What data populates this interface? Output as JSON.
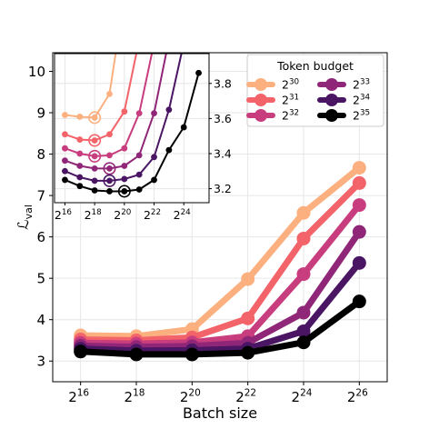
{
  "chart_data": [
    {
      "type": "line",
      "role": "main",
      "xlabel": "Batch size",
      "ylabel_base": "ℒ",
      "ylabel_sub": "val",
      "x": [
        16,
        18,
        20,
        22,
        24,
        26
      ],
      "x_ticks": [
        16,
        18,
        20,
        22,
        24,
        26
      ],
      "x_tick_base": "2",
      "xlim": [
        15.0,
        27.0
      ],
      "ylim": [
        2.5,
        10.45
      ],
      "y_ticks": [
        3,
        4,
        5,
        6,
        7,
        8,
        9,
        10
      ],
      "grid": true,
      "legend": {
        "title": "Token budget",
        "placement": "top-right",
        "columns": 2
      },
      "series": [
        {
          "name": "2^30",
          "label_base": "2",
          "label_exp": "30",
          "color": "#fcb07f",
          "values": [
            3.62,
            3.6,
            3.77,
            4.98,
            6.58,
            7.67
          ]
        },
        {
          "name": "2^31",
          "label_base": "2",
          "label_exp": "31",
          "color": "#f3636a",
          "values": [
            3.52,
            3.5,
            3.57,
            4.03,
            5.96,
            7.3
          ]
        },
        {
          "name": "2^32",
          "label_base": "2",
          "label_exp": "32",
          "color": "#c83d7e",
          "values": [
            3.44,
            3.42,
            3.45,
            3.6,
            5.1,
            6.77
          ]
        },
        {
          "name": "2^33",
          "label_base": "2",
          "label_exp": "33",
          "color": "#902678",
          "values": [
            3.37,
            3.34,
            3.36,
            3.44,
            4.17,
            6.12
          ]
        },
        {
          "name": "2^34",
          "label_base": "2",
          "label_exp": "34",
          "color": "#4a1563",
          "values": [
            3.3,
            3.25,
            3.26,
            3.3,
            3.72,
            5.37
          ]
        },
        {
          "name": "2^35",
          "label_base": "2",
          "label_exp": "35",
          "color": "#000000",
          "values": [
            3.23,
            3.16,
            3.16,
            3.2,
            3.45,
            4.44
          ]
        }
      ]
    },
    {
      "type": "line",
      "role": "inset",
      "x": [
        16,
        17,
        18,
        19,
        20,
        21,
        22,
        23,
        24,
        25
      ],
      "x_ticks": [
        16,
        18,
        20,
        22,
        24
      ],
      "x_tick_base": "2",
      "xlim": [
        15.3,
        25.7
      ],
      "ylim": [
        3.12,
        3.97
      ],
      "y_ticks": [
        3.2,
        3.4,
        3.6,
        3.8
      ],
      "y_tick_side": "right",
      "grid": true,
      "marked_optimum": "open circle at the lowest point of each series",
      "series": [
        {
          "name": "2^30",
          "color": "#fcb07f",
          "values": [
            3.62,
            3.61,
            3.605,
            3.74,
            4.3,
            null,
            null,
            null,
            null,
            null
          ],
          "optimum_x": 18
        },
        {
          "name": "2^31",
          "color": "#f3636a",
          "values": [
            3.51,
            3.48,
            3.475,
            3.51,
            3.64,
            4.05,
            null,
            null,
            null,
            null
          ],
          "optimum_x": 18
        },
        {
          "name": "2^32",
          "color": "#c83d7e",
          "values": [
            3.43,
            3.4,
            3.385,
            3.39,
            3.43,
            3.63,
            4.03,
            null,
            null,
            null
          ],
          "optimum_x": 18
        },
        {
          "name": "2^33",
          "color": "#902678",
          "values": [
            3.36,
            3.33,
            3.315,
            3.315,
            3.33,
            3.39,
            3.63,
            4.05,
            null,
            null
          ],
          "optimum_x": 19
        },
        {
          "name": "2^34",
          "color": "#4a1563",
          "values": [
            3.3,
            3.265,
            3.245,
            3.245,
            3.255,
            3.28,
            3.38,
            3.65,
            4.03,
            null
          ],
          "optimum_x": 19
        },
        {
          "name": "2^35",
          "color": "#000000",
          "values": [
            3.25,
            3.215,
            3.19,
            3.185,
            3.185,
            3.195,
            3.25,
            3.42,
            3.55,
            3.86
          ],
          "optimum_x": 20
        }
      ]
    }
  ]
}
